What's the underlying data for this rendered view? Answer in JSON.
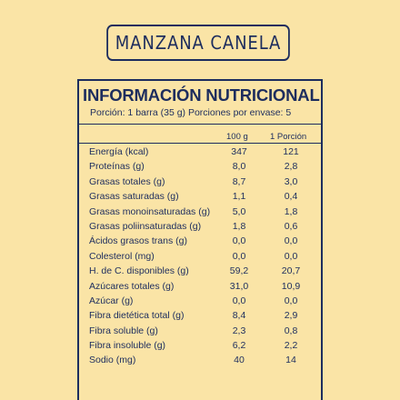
{
  "product_name": "MANZANA CANELA",
  "panel": {
    "heading": "INFORMACIÓN NUTRICIONAL",
    "serving": "Porción: 1 barra (35 g) Porciones por envase: 5",
    "columns": [
      "100 g",
      "1 Porción"
    ],
    "rows": [
      {
        "label": "Energía (kcal)",
        "per100": "347",
        "perPortion": "121"
      },
      {
        "label": "Proteínas (g)",
        "per100": "8,0",
        "perPortion": "2,8"
      },
      {
        "label": "Grasas totales (g)",
        "per100": "8,7",
        "perPortion": "3,0"
      },
      {
        "label": "Grasas saturadas (g)",
        "per100": "1,1",
        "perPortion": "0,4"
      },
      {
        "label": "Grasas monoinsaturadas (g)",
        "per100": "5,0",
        "perPortion": "1,8"
      },
      {
        "label": "Grasas poliinsaturadas (g)",
        "per100": "1,8",
        "perPortion": "0,6"
      },
      {
        "label": "Ácidos grasos trans (g)",
        "per100": "0,0",
        "perPortion": "0,0"
      },
      {
        "label": "Colesterol (mg)",
        "per100": "0,0",
        "perPortion": "0,0"
      },
      {
        "label": "H. de C. disponibles (g)",
        "per100": "59,2",
        "perPortion": "20,7"
      },
      {
        "label": "Azúcares totales (g)",
        "per100": "31,0",
        "perPortion": "10,9"
      },
      {
        "label": "Azúcar (g)",
        "per100": "0,0",
        "perPortion": "0,0"
      },
      {
        "label": "Fibra dietética total (g)",
        "per100": "8,4",
        "perPortion": "2,9"
      },
      {
        "label": "Fibra soluble (g)",
        "per100": "2,3",
        "perPortion": "0,8"
      },
      {
        "label": "Fibra insoluble (g)",
        "per100": "6,2",
        "perPortion": "2,2"
      },
      {
        "label": "Sodio (mg)",
        "per100": "40",
        "perPortion": "14"
      }
    ]
  },
  "colors": {
    "background": "#fae4a6",
    "ink": "#1d2d5e"
  }
}
